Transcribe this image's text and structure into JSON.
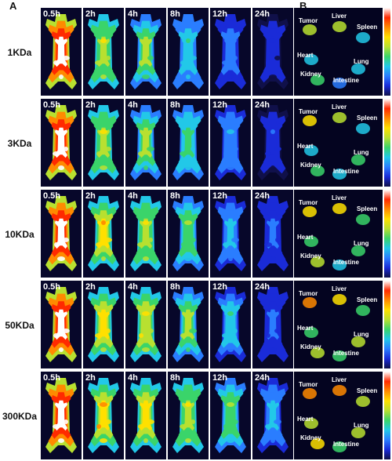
{
  "panel_labels": {
    "a": "A",
    "b": "B"
  },
  "time_labels": [
    "0.5h",
    "2h",
    "4h",
    "8h",
    "12h",
    "24h"
  ],
  "rows": [
    {
      "label": "1KDa",
      "intensity": [
        0.95,
        0.55,
        0.5,
        0.38,
        0.25,
        0.15
      ],
      "organ_labels": {
        "tumor": "Tumor",
        "liver": "Liver",
        "spleen": "Spleen",
        "heart": "Heart",
        "lung": "Lung",
        "kidney": "Kidney",
        "intestine": "Intestine"
      }
    },
    {
      "label": "3KDa",
      "intensity": [
        0.95,
        0.55,
        0.5,
        0.4,
        0.28,
        0.18
      ],
      "organ_labels": {
        "tumor": "Tumor",
        "liver": "Liver",
        "spleen": "Spleen",
        "heart": "Heart",
        "lung": "Lung",
        "kidney": "Kidney",
        "intestine": "Intestine"
      }
    },
    {
      "label": "10KDa",
      "intensity": [
        0.95,
        0.62,
        0.55,
        0.45,
        0.32,
        0.2
      ],
      "organ_labels": {
        "tumor": "Tumor",
        "liver": "Liver",
        "spleen": "Spleen",
        "heart": "Heart",
        "lung": "Lung",
        "kidney": "Kidney",
        "intestine": "Intestine"
      }
    },
    {
      "label": "50KDa",
      "intensity": [
        0.95,
        0.6,
        0.58,
        0.5,
        0.35,
        0.2
      ],
      "organ_labels": {
        "tumor": "Tumor",
        "liver": "Liver",
        "spleen": "Spleen",
        "heart": "Heart",
        "lung": "Lung",
        "kidney": "Kidney",
        "intestine": "Intestine"
      }
    },
    {
      "label": "300KDa",
      "intensity": [
        0.97,
        0.65,
        0.6,
        0.55,
        0.45,
        0.3
      ],
      "organ_labels": {
        "tumor": "Tumor",
        "liver": "Liver",
        "spleen": "Spleen",
        "heart": "Heart",
        "lung": "Lung",
        "kidney": "Kidney",
        "intestine": "Intestine"
      }
    }
  ],
  "colormap": [
    "#10104a",
    "#1a2bd8",
    "#2a7dff",
    "#22c8e8",
    "#3ad46a",
    "#b8e030",
    "#ffe000",
    "#ff8a00",
    "#ff2a00",
    "#ffffff"
  ]
}
